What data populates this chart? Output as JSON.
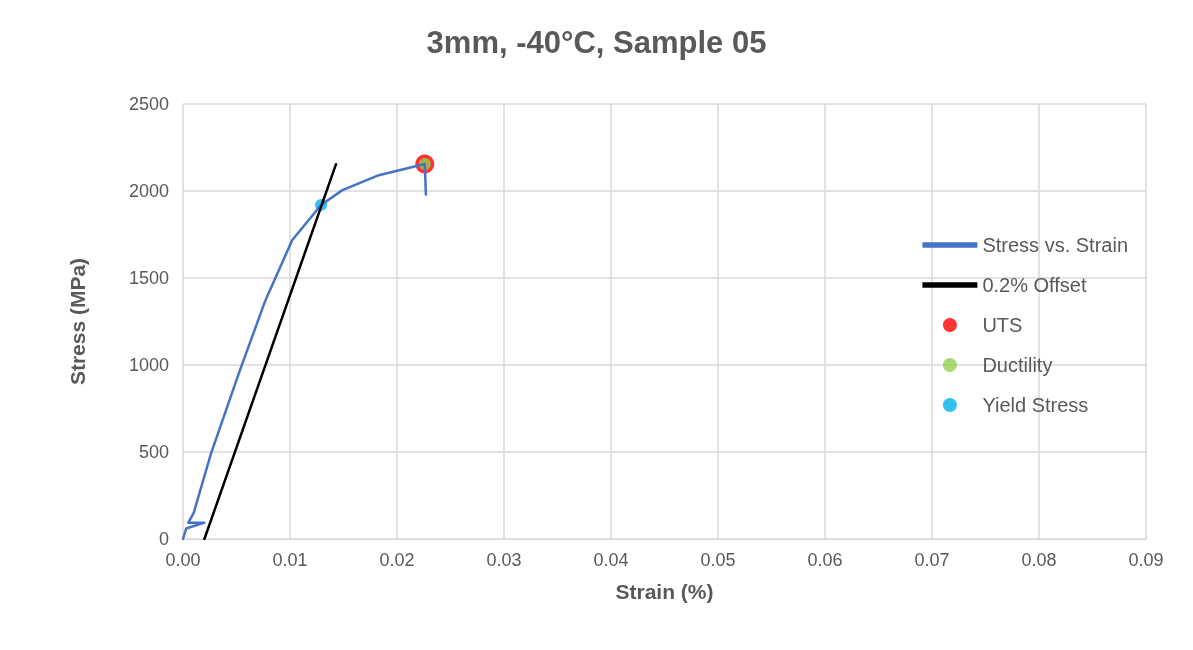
{
  "chart_data": {
    "type": "line",
    "title": "3mm, -40°C, Sample 05",
    "xlabel": "Strain (%)",
    "ylabel": "Stress (MPa)",
    "xlim": [
      0,
      0.09
    ],
    "xticks": [
      {
        "value": 0,
        "label": "0.00"
      },
      {
        "value": 0.01,
        "label": "0.01"
      },
      {
        "value": 0.02,
        "label": "0.02"
      },
      {
        "value": 0.03,
        "label": "0.03"
      },
      {
        "value": 0.04,
        "label": "0.04"
      },
      {
        "value": 0.05,
        "label": "0.05"
      },
      {
        "value": 0.06,
        "label": "0.06"
      },
      {
        "value": 0.07,
        "label": "0.07"
      },
      {
        "value": 0.08,
        "label": "0.08"
      },
      {
        "value": 0.09,
        "label": "0.09"
      }
    ],
    "ylim": [
      0,
      2500
    ],
    "yticks": [
      0,
      500,
      1000,
      1500,
      2000,
      2500
    ],
    "grid": true,
    "legend": "right",
    "series": [
      {
        "name": "Stress vs. Strain",
        "color": "#4472c4",
        "marker": "none",
        "line_style": "solid",
        "x": [
          0,
          0.0003,
          0.002,
          0.0005,
          0.001,
          0.0026,
          0.0052,
          0.0077,
          0.0102,
          0.0129,
          0.0149,
          0.0183,
          0.0226,
          0.0227
        ],
        "values": [
          0,
          60,
          94,
          94,
          150,
          488,
          949,
          1371,
          1717,
          1920,
          2005,
          2091,
          2155,
          1980
        ]
      },
      {
        "name": "0.2% Offset",
        "color": "#000000",
        "marker": "none",
        "line_style": "solid",
        "x": [
          0.002,
          0.0143
        ],
        "values": [
          0,
          2154
        ]
      },
      {
        "name": "UTS",
        "type": "scatter",
        "color": "#ff0000",
        "marker": "circle",
        "x": [
          0.0226
        ],
        "values": [
          2155
        ]
      },
      {
        "name": "Ductility",
        "type": "scatter",
        "color": "#92d050",
        "marker": "circle",
        "x": [
          0.0226
        ],
        "values": [
          2155
        ]
      },
      {
        "name": "Yield Stress",
        "type": "scatter",
        "color": "#00b0f0",
        "marker": "circle",
        "x": [
          0.0129
        ],
        "values": [
          1920
        ]
      }
    ]
  }
}
